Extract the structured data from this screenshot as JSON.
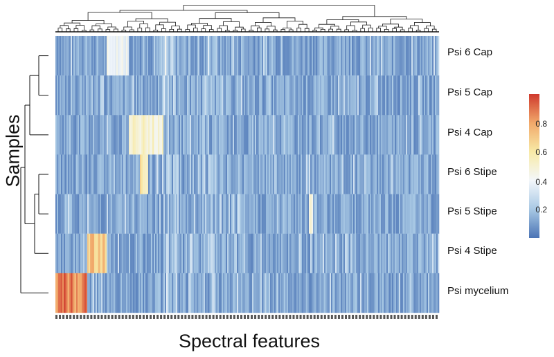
{
  "chart_data": {
    "type": "heatmap",
    "title": "",
    "xlabel": "Spectral features",
    "ylabel": "Samples",
    "rows": [
      "Psi 6 Cap",
      "Psi 5 Cap",
      "Psi 4 Cap",
      "Psi 6 Stipe",
      "Psi 5 Stipe",
      "Psi 4 Stipe",
      "Psi mycelium"
    ],
    "row_dendrogram": true,
    "column_dendrogram": true,
    "color_scale": {
      "range": [
        0,
        1
      ],
      "ticks": [
        "0.2",
        "0.4",
        "0.6",
        "0.8"
      ],
      "colors": [
        "#4b74b5",
        "#a8c8e4",
        "#f3f7fb",
        "#f8eaa6",
        "#f1a86a",
        "#cf3a2d"
      ]
    },
    "highlights": [
      {
        "row": "Psi 6 Cap",
        "feature_range": [
          0.13,
          0.19
        ],
        "level": 0.4
      },
      {
        "row": "Psi 4 Cap",
        "feature_range": [
          0.19,
          0.28
        ],
        "level": 0.5
      },
      {
        "row": "Psi 6 Stipe",
        "feature_range": [
          0.22,
          0.24
        ],
        "level": 0.6
      },
      {
        "row": "Psi 5 Stipe",
        "feature_range": [
          0.66,
          0.67
        ],
        "level": 0.45
      },
      {
        "row": "Psi 4 Stipe",
        "feature_range": [
          0.08,
          0.13
        ],
        "level": 0.7
      },
      {
        "row": "Psi mycelium",
        "feature_range": [
          0.0,
          0.08
        ],
        "level": 0.85
      }
    ]
  }
}
